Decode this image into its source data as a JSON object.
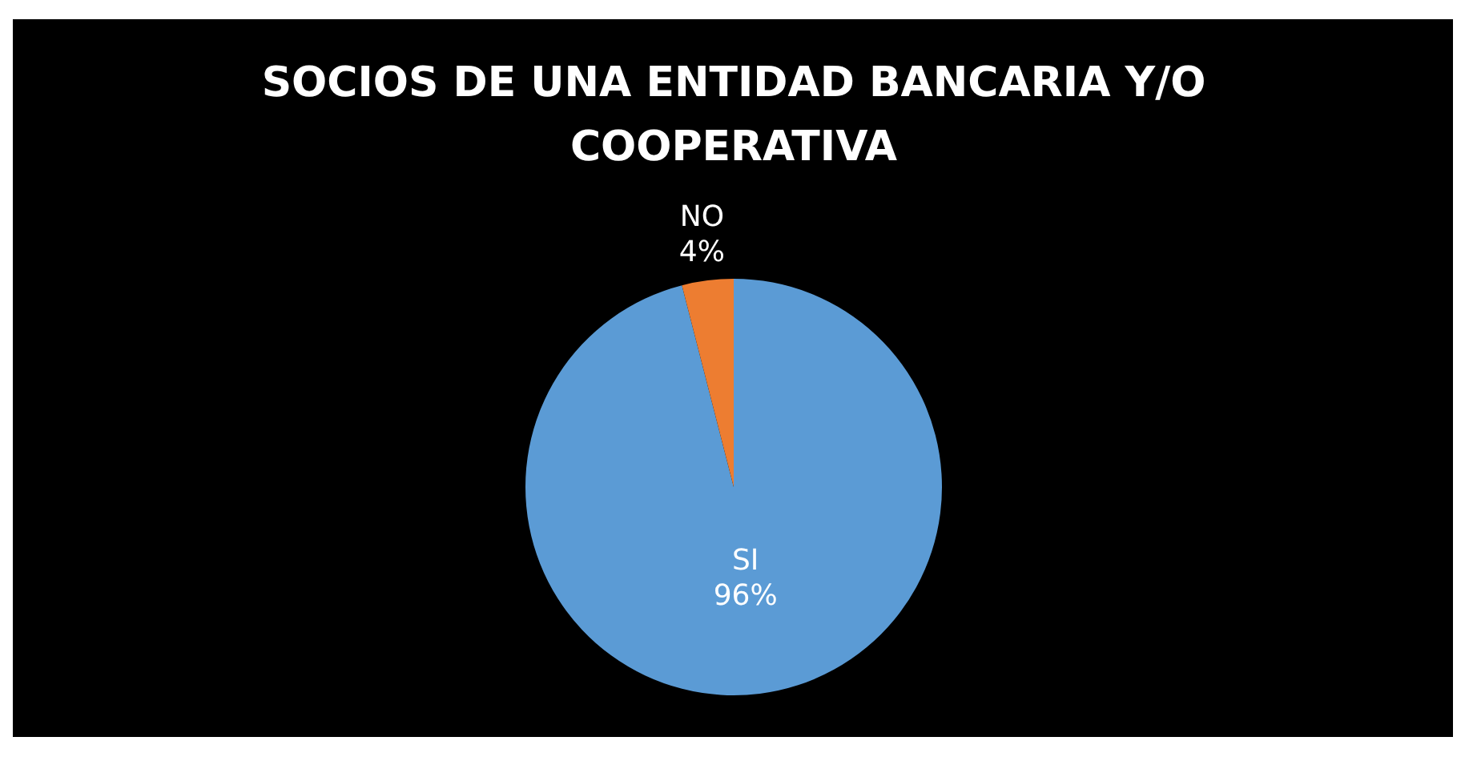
{
  "chart_data": {
    "type": "pie",
    "title": "SOCIOS DE UNA ENTIDAD BANCARIA Y/O COOPERATIVA",
    "categories": [
      "SI",
      "NO"
    ],
    "values": [
      96,
      4
    ],
    "colors": [
      "#5b9bd5",
      "#ed7d31"
    ],
    "value_labels": [
      "96%",
      "4%"
    ],
    "legend": false
  }
}
